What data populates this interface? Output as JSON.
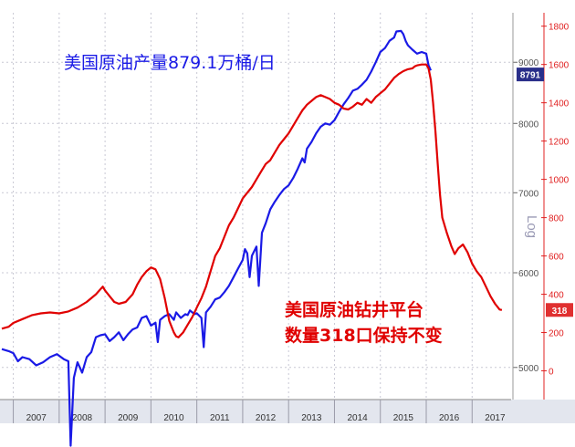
{
  "annotations": {
    "production": "美国原油产量879.1万桶/日",
    "rigs_line1": "美国原油钻井平台",
    "rigs_line2": "数量318口保持不变"
  },
  "chart_data": {
    "type": "line",
    "x_range": [
      2006.75,
      2017.85
    ],
    "x_ticks": [
      "2007",
      "2008",
      "2009",
      "2010",
      "2011",
      "2012",
      "2013",
      "2014",
      "2015",
      "2016",
      "2017"
    ],
    "y_left": {
      "label": "Log",
      "scale": "log",
      "range": [
        4700,
        9900
      ],
      "ticks": [
        5000,
        6000,
        7000,
        8000,
        9000
      ],
      "last_value_label": "8791",
      "color": "#1a1ae6"
    },
    "y_right": {
      "scale": "linear",
      "range": [
        -150,
        1870
      ],
      "ticks": [
        0,
        200,
        400,
        600,
        800,
        1000,
        1200,
        1400,
        1600,
        1800
      ],
      "last_value_label": "318",
      "color": "#e00000"
    },
    "grid": true,
    "series": [
      {
        "axis": "left",
        "color": "#1a1ae6",
        "points": [
          [
            2006.75,
            5180
          ],
          [
            2006.9,
            5160
          ],
          [
            2007.0,
            5140
          ],
          [
            2007.1,
            5060
          ],
          [
            2007.2,
            5100
          ],
          [
            2007.35,
            5080
          ],
          [
            2007.5,
            5020
          ],
          [
            2007.65,
            5050
          ],
          [
            2007.8,
            5100
          ],
          [
            2007.95,
            5130
          ],
          [
            2008.1,
            5080
          ],
          [
            2008.2,
            5060
          ],
          [
            2008.25,
            4300
          ],
          [
            2008.32,
            4900
          ],
          [
            2008.4,
            5050
          ],
          [
            2008.5,
            4950
          ],
          [
            2008.6,
            5100
          ],
          [
            2008.7,
            5150
          ],
          [
            2008.8,
            5300
          ],
          [
            2008.9,
            5320
          ],
          [
            2009.0,
            5330
          ],
          [
            2009.1,
            5260
          ],
          [
            2009.2,
            5300
          ],
          [
            2009.3,
            5350
          ],
          [
            2009.4,
            5270
          ],
          [
            2009.5,
            5330
          ],
          [
            2009.6,
            5380
          ],
          [
            2009.7,
            5400
          ],
          [
            2009.8,
            5500
          ],
          [
            2009.9,
            5520
          ],
          [
            2010.0,
            5420
          ],
          [
            2010.1,
            5450
          ],
          [
            2010.15,
            5250
          ],
          [
            2010.2,
            5480
          ],
          [
            2010.3,
            5520
          ],
          [
            2010.4,
            5540
          ],
          [
            2010.5,
            5480
          ],
          [
            2010.55,
            5560
          ],
          [
            2010.65,
            5500
          ],
          [
            2010.75,
            5540
          ],
          [
            2010.8,
            5530
          ],
          [
            2010.85,
            5580
          ],
          [
            2010.95,
            5540
          ],
          [
            2011.0,
            5550
          ],
          [
            2011.1,
            5500
          ],
          [
            2011.15,
            5200
          ],
          [
            2011.2,
            5560
          ],
          [
            2011.3,
            5620
          ],
          [
            2011.4,
            5700
          ],
          [
            2011.5,
            5720
          ],
          [
            2011.6,
            5780
          ],
          [
            2011.7,
            5850
          ],
          [
            2011.8,
            5950
          ],
          [
            2011.9,
            6050
          ],
          [
            2012.0,
            6150
          ],
          [
            2012.05,
            6280
          ],
          [
            2012.1,
            6230
          ],
          [
            2012.15,
            5950
          ],
          [
            2012.2,
            6200
          ],
          [
            2012.3,
            6310
          ],
          [
            2012.35,
            5850
          ],
          [
            2012.42,
            6480
          ],
          [
            2012.5,
            6600
          ],
          [
            2012.6,
            6780
          ],
          [
            2012.7,
            6880
          ],
          [
            2012.8,
            6970
          ],
          [
            2012.9,
            7050
          ],
          [
            2013.0,
            7100
          ],
          [
            2013.1,
            7200
          ],
          [
            2013.2,
            7330
          ],
          [
            2013.3,
            7480
          ],
          [
            2013.35,
            7420
          ],
          [
            2013.4,
            7620
          ],
          [
            2013.5,
            7720
          ],
          [
            2013.6,
            7850
          ],
          [
            2013.7,
            7950
          ],
          [
            2013.8,
            8000
          ],
          [
            2013.9,
            7980
          ],
          [
            2014.0,
            8050
          ],
          [
            2014.1,
            8180
          ],
          [
            2014.2,
            8300
          ],
          [
            2014.3,
            8400
          ],
          [
            2014.4,
            8520
          ],
          [
            2014.5,
            8550
          ],
          [
            2014.6,
            8620
          ],
          [
            2014.7,
            8700
          ],
          [
            2014.8,
            8840
          ],
          [
            2014.9,
            9000
          ],
          [
            2015.0,
            9180
          ],
          [
            2015.1,
            9250
          ],
          [
            2015.2,
            9380
          ],
          [
            2015.3,
            9440
          ],
          [
            2015.35,
            9550
          ],
          [
            2015.45,
            9560
          ],
          [
            2015.5,
            9500
          ],
          [
            2015.55,
            9380
          ],
          [
            2015.6,
            9300
          ],
          [
            2015.7,
            9220
          ],
          [
            2015.8,
            9150
          ],
          [
            2015.9,
            9180
          ],
          [
            2016.0,
            9150
          ],
          [
            2016.05,
            8950
          ],
          [
            2016.1,
            8860
          ]
        ]
      },
      {
        "axis": "right",
        "color": "#e00000",
        "points": [
          [
            2006.75,
            220
          ],
          [
            2006.9,
            230
          ],
          [
            2007.0,
            250
          ],
          [
            2007.2,
            270
          ],
          [
            2007.4,
            290
          ],
          [
            2007.6,
            300
          ],
          [
            2007.8,
            305
          ],
          [
            2008.0,
            300
          ],
          [
            2008.2,
            310
          ],
          [
            2008.4,
            330
          ],
          [
            2008.6,
            360
          ],
          [
            2008.8,
            400
          ],
          [
            2008.95,
            440
          ],
          [
            2009.0,
            420
          ],
          [
            2009.1,
            390
          ],
          [
            2009.2,
            360
          ],
          [
            2009.3,
            350
          ],
          [
            2009.45,
            360
          ],
          [
            2009.6,
            400
          ],
          [
            2009.7,
            450
          ],
          [
            2009.8,
            490
          ],
          [
            2009.9,
            520
          ],
          [
            2010.0,
            540
          ],
          [
            2010.1,
            530
          ],
          [
            2010.2,
            480
          ],
          [
            2010.3,
            380
          ],
          [
            2010.4,
            260
          ],
          [
            2010.45,
            230
          ],
          [
            2010.5,
            200
          ],
          [
            2010.55,
            180
          ],
          [
            2010.6,
            175
          ],
          [
            2010.7,
            200
          ],
          [
            2010.8,
            240
          ],
          [
            2010.9,
            280
          ],
          [
            2011.0,
            330
          ],
          [
            2011.1,
            380
          ],
          [
            2011.2,
            440
          ],
          [
            2011.3,
            520
          ],
          [
            2011.4,
            600
          ],
          [
            2011.5,
            640
          ],
          [
            2011.6,
            700
          ],
          [
            2011.7,
            760
          ],
          [
            2011.8,
            800
          ],
          [
            2011.9,
            850
          ],
          [
            2012.0,
            900
          ],
          [
            2012.1,
            930
          ],
          [
            2012.2,
            960
          ],
          [
            2012.3,
            1000
          ],
          [
            2012.4,
            1040
          ],
          [
            2012.5,
            1080
          ],
          [
            2012.6,
            1100
          ],
          [
            2012.7,
            1140
          ],
          [
            2012.8,
            1180
          ],
          [
            2012.9,
            1210
          ],
          [
            2013.0,
            1240
          ],
          [
            2013.1,
            1280
          ],
          [
            2013.2,
            1320
          ],
          [
            2013.3,
            1360
          ],
          [
            2013.4,
            1390
          ],
          [
            2013.5,
            1410
          ],
          [
            2013.6,
            1430
          ],
          [
            2013.7,
            1440
          ],
          [
            2013.8,
            1430
          ],
          [
            2013.9,
            1420
          ],
          [
            2014.0,
            1400
          ],
          [
            2014.1,
            1390
          ],
          [
            2014.2,
            1370
          ],
          [
            2014.3,
            1365
          ],
          [
            2014.4,
            1380
          ],
          [
            2014.5,
            1400
          ],
          [
            2014.6,
            1390
          ],
          [
            2014.7,
            1420
          ],
          [
            2014.8,
            1400
          ],
          [
            2014.9,
            1430
          ],
          [
            2015.0,
            1450
          ],
          [
            2015.1,
            1470
          ],
          [
            2015.2,
            1500
          ],
          [
            2015.3,
            1530
          ],
          [
            2015.4,
            1550
          ],
          [
            2015.5,
            1565
          ],
          [
            2015.6,
            1575
          ],
          [
            2015.7,
            1580
          ],
          [
            2015.75,
            1590
          ],
          [
            2015.8,
            1595
          ],
          [
            2015.9,
            1600
          ],
          [
            2016.0,
            1600
          ],
          [
            2016.05,
            1580
          ],
          [
            2016.1,
            1520
          ],
          [
            2016.15,
            1400
          ],
          [
            2016.2,
            1250
          ],
          [
            2016.25,
            1080
          ],
          [
            2016.3,
            920
          ],
          [
            2016.35,
            800
          ],
          [
            2016.45,
            720
          ],
          [
            2016.55,
            650
          ],
          [
            2016.62,
            610
          ],
          [
            2016.7,
            640
          ],
          [
            2016.8,
            660
          ],
          [
            2016.9,
            620
          ],
          [
            2017.0,
            560
          ],
          [
            2017.1,
            520
          ],
          [
            2017.2,
            490
          ],
          [
            2017.3,
            440
          ],
          [
            2017.4,
            390
          ],
          [
            2017.5,
            350
          ],
          [
            2017.6,
            320
          ],
          [
            2017.65,
            318
          ]
        ]
      }
    ]
  }
}
